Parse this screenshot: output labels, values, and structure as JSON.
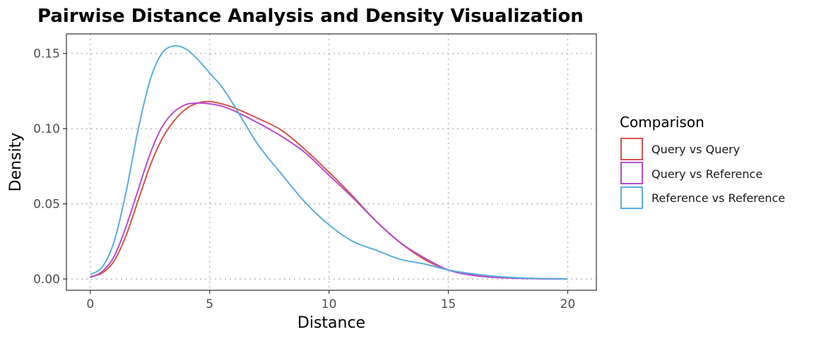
{
  "chart_data": {
    "type": "line",
    "title": "Pairwise Distance Analysis and Density Visualization",
    "xlabel": "Distance",
    "ylabel": "Density",
    "xlim": [
      -1,
      21.2
    ],
    "ylim": [
      -0.0075,
      0.163
    ],
    "xticks": [
      0,
      5,
      10,
      15,
      20
    ],
    "xtick_labels": [
      "0",
      "5",
      "10",
      "15",
      "20"
    ],
    "yticks": [
      0,
      0.05,
      0.1,
      0.15
    ],
    "ytick_labels": [
      "0.00",
      "0.05",
      "0.10",
      "0.15"
    ],
    "grid": true,
    "legend": {
      "title": "Comparison",
      "position": "right"
    },
    "series": [
      {
        "name": "Query vs Query",
        "color": "#d6544a",
        "x": [
          0,
          0.5,
          1,
          1.5,
          2,
          2.5,
          3,
          3.5,
          4,
          4.5,
          5,
          5.5,
          6,
          7,
          8,
          9,
          10,
          11,
          12,
          13,
          14,
          15,
          16,
          17,
          18,
          19,
          20
        ],
        "y": [
          0.0015,
          0.004,
          0.012,
          0.029,
          0.052,
          0.075,
          0.093,
          0.105,
          0.113,
          0.117,
          0.118,
          0.1165,
          0.114,
          0.107,
          0.099,
          0.086,
          0.071,
          0.055,
          0.038,
          0.024,
          0.013,
          0.006,
          0.0028,
          0.0012,
          0.0005,
          0.0002,
          0.0
        ]
      },
      {
        "name": "Query vs Reference",
        "color": "#b84ccd",
        "x": [
          0,
          0.5,
          1,
          1.5,
          2,
          2.5,
          3,
          3.5,
          4,
          4.5,
          5,
          5.5,
          6,
          7,
          8,
          9,
          10,
          11,
          12,
          13,
          14,
          15,
          16,
          17,
          18,
          19,
          20
        ],
        "y": [
          0.001,
          0.005,
          0.015,
          0.035,
          0.059,
          0.083,
          0.101,
          0.111,
          0.116,
          0.117,
          0.1165,
          0.115,
          0.112,
          0.104,
          0.095,
          0.084,
          0.069,
          0.054,
          0.038,
          0.024,
          0.014,
          0.006,
          0.0025,
          0.001,
          0.0004,
          0.0001,
          0.0
        ]
      },
      {
        "name": "Reference vs Reference",
        "color": "#5aaee0",
        "x": [
          0,
          0.5,
          1,
          1.5,
          2,
          2.5,
          3,
          3.5,
          4,
          4.5,
          5,
          5.5,
          6,
          7,
          8,
          9,
          10,
          11,
          12,
          13,
          14,
          15,
          16,
          17,
          18,
          19,
          20
        ],
        "y": [
          0.003,
          0.008,
          0.025,
          0.058,
          0.099,
          0.132,
          0.15,
          0.155,
          0.153,
          0.146,
          0.137,
          0.128,
          0.116,
          0.09,
          0.07,
          0.051,
          0.036,
          0.025,
          0.019,
          0.013,
          0.01,
          0.006,
          0.0035,
          0.0018,
          0.0008,
          0.0003,
          0.0001
        ]
      }
    ]
  }
}
